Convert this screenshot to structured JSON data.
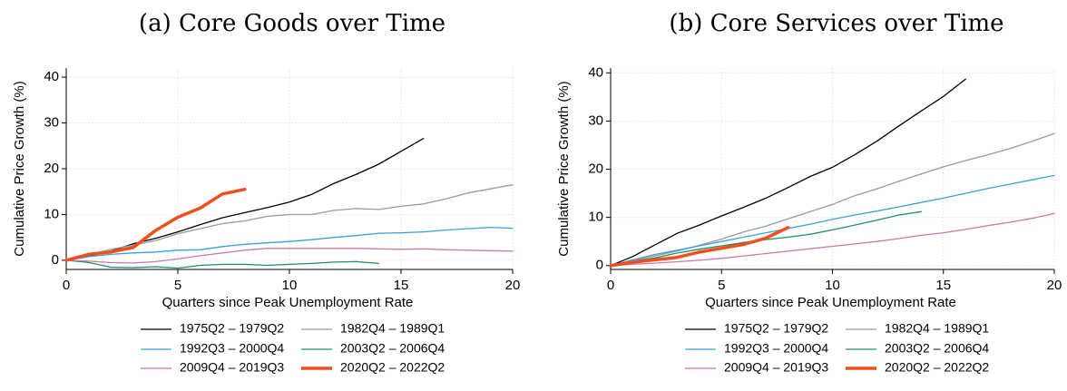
{
  "chart_data": [
    {
      "type": "line",
      "title": "(a) Core Goods over Time",
      "xlabel": "Quarters since Peak Unemployment Rate",
      "ylabel": "Cumulative Price Growth (%)",
      "xlim": [
        0,
        20
      ],
      "ylim": [
        -2,
        42
      ],
      "xticks": [
        0,
        5,
        10,
        15,
        20
      ],
      "yticks": [
        0,
        10,
        20,
        30,
        40
      ],
      "grid": true,
      "legend_position": "bottom",
      "series": [
        {
          "name": "1975Q2 – 1979Q2",
          "color": "#000000",
          "width": 1.3,
          "x": [
            0,
            1,
            2,
            3,
            4,
            5,
            6,
            7,
            8,
            9,
            10,
            11,
            12,
            13,
            14,
            15,
            16
          ],
          "y": [
            0,
            0.8,
            2.0,
            3.6,
            4.8,
            6.2,
            7.8,
            9.3,
            10.4,
            11.5,
            12.7,
            14.4,
            16.8,
            18.8,
            21.0,
            23.8,
            26.6
          ]
        },
        {
          "name": "1982Q4 – 1989Q1",
          "color": "#9a9a9a",
          "width": 1.3,
          "x": [
            0,
            1,
            2,
            3,
            4,
            5,
            6,
            7,
            8,
            9,
            10,
            11,
            12,
            13,
            14,
            15,
            16,
            17,
            18,
            19,
            20
          ],
          "y": [
            0,
            1.2,
            2.4,
            3.3,
            4.3,
            5.8,
            6.9,
            8.0,
            8.6,
            9.6,
            10.0,
            10.0,
            10.9,
            11.3,
            11.1,
            11.8,
            12.3,
            13.4,
            14.7,
            15.6,
            16.5
          ]
        },
        {
          "name": "1992Q3 – 2000Q4",
          "color": "#3aa0d8",
          "width": 1.3,
          "x": [
            0,
            1,
            2,
            3,
            4,
            5,
            6,
            7,
            8,
            9,
            10,
            11,
            12,
            13,
            14,
            15,
            16,
            17,
            18,
            19,
            20
          ],
          "y": [
            0,
            0.8,
            1.3,
            1.6,
            1.8,
            2.2,
            2.3,
            3.0,
            3.5,
            3.8,
            4.1,
            4.5,
            5.0,
            5.4,
            5.9,
            6.0,
            6.2,
            6.6,
            6.9,
            7.2,
            7.0
          ]
        },
        {
          "name": "2003Q2 – 2006Q4",
          "color": "#1a8f6a",
          "width": 1.3,
          "x": [
            0,
            1,
            2,
            3,
            4,
            5,
            6,
            7,
            8,
            9,
            10,
            11,
            12,
            13,
            14
          ],
          "y": [
            0,
            -0.5,
            -1.5,
            -1.6,
            -1.4,
            -1.7,
            -1.1,
            -0.9,
            -0.9,
            -1.1,
            -0.9,
            -0.7,
            -0.4,
            -0.3,
            -0.7
          ]
        },
        {
          "name": "2009Q4 – 2019Q3",
          "color": "#c97aa8",
          "width": 1.3,
          "x": [
            0,
            1,
            2,
            3,
            4,
            5,
            6,
            7,
            8,
            9,
            10,
            11,
            12,
            13,
            14,
            15,
            16,
            17,
            18,
            19,
            20
          ],
          "y": [
            0,
            -0.2,
            -0.5,
            -0.6,
            -0.3,
            0.3,
            1.0,
            1.6,
            2.2,
            2.6,
            2.6,
            2.6,
            2.6,
            2.6,
            2.5,
            2.4,
            2.5,
            2.3,
            2.2,
            2.1,
            2.0
          ]
        },
        {
          "name": "2020Q2 – 2022Q2",
          "color": "#f04e1c",
          "width": 3.5,
          "x": [
            0,
            1,
            2,
            3,
            4,
            5,
            6,
            7,
            8
          ],
          "y": [
            0,
            1.3,
            1.8,
            2.8,
            6.5,
            9.4,
            11.4,
            14.5,
            15.5
          ]
        }
      ]
    },
    {
      "type": "line",
      "title": "(b) Core Services over Time",
      "xlabel": "Quarters since Peak Unemployment Rate",
      "ylabel": "Cumulative Price Growth (%)",
      "xlim": [
        0,
        20
      ],
      "ylim": [
        -0.8,
        41
      ],
      "xticks": [
        0,
        5,
        10,
        15,
        20
      ],
      "yticks": [
        0,
        10,
        20,
        30,
        40
      ],
      "grid": true,
      "legend_position": "bottom",
      "series": [
        {
          "name": "1975Q2 – 1979Q2",
          "color": "#000000",
          "width": 1.3,
          "x": [
            0,
            1,
            2,
            3,
            4,
            5,
            6,
            7,
            8,
            9,
            10,
            11,
            12,
            13,
            14,
            15,
            16
          ],
          "y": [
            0,
            1.9,
            4.3,
            6.7,
            8.4,
            10.3,
            12.1,
            14.0,
            16.2,
            18.5,
            20.4,
            23.0,
            25.8,
            29.0,
            32.1,
            35.1,
            38.7
          ]
        },
        {
          "name": "1982Q4 – 1989Q1",
          "color": "#9a9a9a",
          "width": 1.3,
          "x": [
            0,
            1,
            2,
            3,
            4,
            5,
            6,
            7,
            8,
            9,
            10,
            11,
            12,
            13,
            14,
            15,
            16,
            17,
            18,
            19,
            20
          ],
          "y": [
            0,
            1.0,
            2.0,
            3.0,
            4.2,
            5.5,
            7.0,
            8.2,
            9.7,
            11.2,
            12.7,
            14.5,
            15.9,
            17.5,
            19.0,
            20.5,
            21.8,
            23.0,
            24.3,
            25.8,
            27.4
          ]
        },
        {
          "name": "1992Q3 – 2000Q4",
          "color": "#3aa0d8",
          "width": 1.3,
          "x": [
            0,
            1,
            2,
            3,
            4,
            5,
            6,
            7,
            8,
            9,
            10,
            11,
            12,
            13,
            14,
            15,
            16,
            17,
            18,
            19,
            20
          ],
          "y": [
            0,
            1.2,
            2.3,
            3.2,
            4.1,
            5.0,
            5.9,
            6.8,
            7.7,
            8.6,
            9.6,
            10.5,
            11.3,
            12.2,
            13.1,
            14.0,
            15.0,
            16.0,
            16.9,
            17.8,
            18.7
          ]
        },
        {
          "name": "2003Q2 – 2006Q4",
          "color": "#1a8f6a",
          "width": 1.3,
          "x": [
            0,
            1,
            2,
            3,
            4,
            5,
            6,
            7,
            8,
            9,
            10,
            11,
            12,
            13,
            14
          ],
          "y": [
            0,
            0.9,
            1.6,
            2.6,
            3.4,
            4.1,
            4.8,
            5.4,
            5.9,
            6.5,
            7.4,
            8.4,
            9.4,
            10.5,
            11.2
          ]
        },
        {
          "name": "2009Q4 – 2019Q3",
          "color": "#c97aa8",
          "width": 1.3,
          "x": [
            0,
            1,
            2,
            3,
            4,
            5,
            6,
            7,
            8,
            9,
            10,
            11,
            12,
            13,
            14,
            15,
            16,
            17,
            18,
            19,
            20
          ],
          "y": [
            0,
            0.3,
            0.5,
            0.8,
            1.1,
            1.5,
            2.0,
            2.5,
            3.0,
            3.5,
            4.0,
            4.5,
            5.0,
            5.6,
            6.3,
            6.8,
            7.5,
            8.3,
            9.0,
            9.8,
            10.8
          ]
        },
        {
          "name": "2020Q2 – 2022Q2",
          "color": "#f04e1c",
          "width": 3.5,
          "x": [
            0,
            1,
            2,
            3,
            4,
            5,
            6,
            7,
            8
          ],
          "y": [
            0,
            0.7,
            1.2,
            1.7,
            2.8,
            3.6,
            4.4,
            5.7,
            7.9
          ]
        }
      ]
    }
  ]
}
